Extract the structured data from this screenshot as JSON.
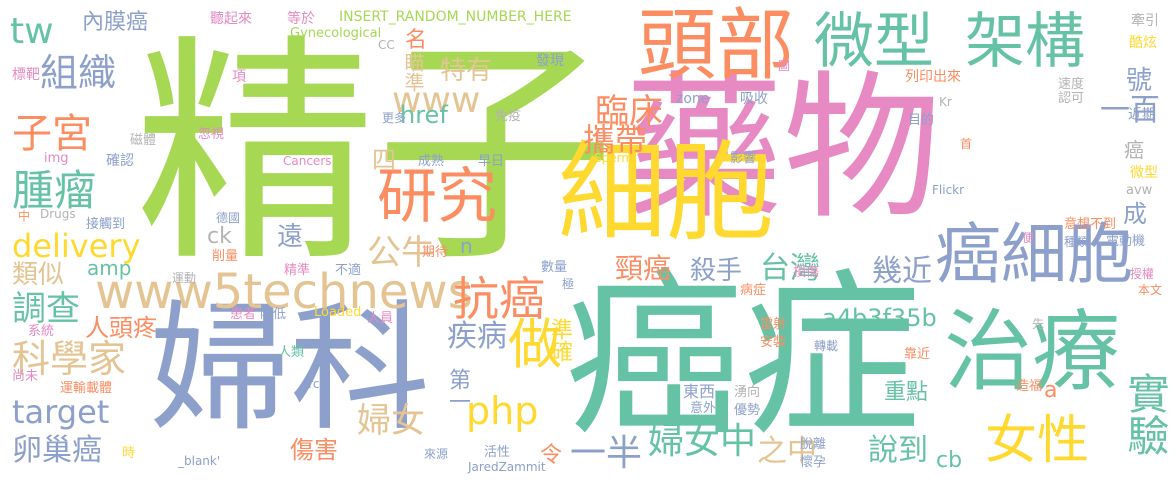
{
  "palette": {
    "green": "#a6d854",
    "teal": "#66c2a5",
    "pink": "#e78ac3",
    "orange": "#fc8d62",
    "blue": "#8da0cb",
    "yellow": "#ffd92f",
    "tan": "#e5c494",
    "gray": "#b3b3b3"
  },
  "words": [
    {
      "text": "精子",
      "color": "#a6d854"
    },
    {
      "text": "藥物",
      "color": "#e78ac3"
    },
    {
      "text": "癌症",
      "color": "#66c2a5"
    },
    {
      "text": "婦科",
      "color": "#8da0cb"
    },
    {
      "text": "細胞",
      "color": "#ffd92f"
    },
    {
      "text": "頭部",
      "color": "#fc8d62"
    },
    {
      "text": "微型",
      "color": "#66c2a5"
    },
    {
      "text": "架構",
      "color": "#66c2a5"
    },
    {
      "text": "治療",
      "color": "#66c2a5"
    },
    {
      "text": "癌細胞",
      "color": "#8da0cb"
    },
    {
      "text": "研究",
      "color": "#fc8d62"
    },
    {
      "text": "www5technews",
      "color": "#e5c494"
    },
    {
      "text": "女性",
      "color": "#ffd92f"
    },
    {
      "text": "實驗",
      "color": "#66c2a5"
    },
    {
      "text": "做",
      "color": "#ffd92f"
    },
    {
      "text": "抗癌",
      "color": "#fc8d62"
    },
    {
      "text": "公牛",
      "color": "#e5c494"
    },
    {
      "text": "delivery",
      "color": "#ffd92f"
    },
    {
      "text": "www",
      "color": "#e5c494"
    },
    {
      "text": "組織",
      "color": "#8da0cb"
    },
    {
      "text": "子宮",
      "color": "#fc8d62"
    },
    {
      "text": "腫瘤",
      "color": "#66c2a5"
    },
    {
      "text": "tw",
      "color": "#66c2a5"
    },
    {
      "text": "內膜癌",
      "color": "#8da0cb"
    },
    {
      "text": "臨床",
      "color": "#fc8d62"
    },
    {
      "text": "攜帶",
      "color": "#fc8d62"
    },
    {
      "text": "特有",
      "color": "#e5c494"
    },
    {
      "text": "瞄準",
      "color": "#e5c494"
    },
    {
      "text": "一百",
      "color": "#8da0cb"
    },
    {
      "text": "號",
      "color": "#8da0cb"
    },
    {
      "text": "科學家",
      "color": "#e5c494"
    },
    {
      "text": "target",
      "color": "#8da0cb"
    },
    {
      "text": "調查",
      "color": "#66c2a5"
    },
    {
      "text": "類似",
      "color": "#e5c494"
    },
    {
      "text": "卵巢癌",
      "color": "#8da0cb"
    },
    {
      "text": "人頭疼",
      "color": "#fc8d62"
    },
    {
      "text": "php",
      "color": "#ffd92f"
    },
    {
      "text": "婦女",
      "color": "#e5c494"
    },
    {
      "text": "婦女中",
      "color": "#66c2a5"
    },
    {
      "text": "一半",
      "color": "#8da0cb"
    },
    {
      "text": "令",
      "color": "#fc8d62"
    },
    {
      "text": "之中",
      "color": "#e5c494"
    },
    {
      "text": "說到",
      "color": "#66c2a5"
    },
    {
      "text": "重點",
      "color": "#66c2a5"
    },
    {
      "text": "台灣",
      "color": "#66c2a5"
    },
    {
      "text": "殺手",
      "color": "#8da0cb"
    },
    {
      "text": "幾近",
      "color": "#8da0cb"
    },
    {
      "text": "頸癌",
      "color": "#fc8d62"
    },
    {
      "text": "疾病",
      "color": "#8da0cb"
    },
    {
      "text": "準確",
      "color": "#ffd92f"
    },
    {
      "text": "第一",
      "color": "#8da0cb"
    },
    {
      "text": "遠",
      "color": "#8da0cb"
    },
    {
      "text": "四",
      "color": "#e5c494"
    },
    {
      "text": "a4b3f35b",
      "color": "#66c2a5"
    },
    {
      "text": "amp",
      "color": "#66c2a5"
    },
    {
      "text": "ck",
      "color": "#b3b3b3"
    },
    {
      "text": "n",
      "color": "#8da0cb"
    },
    {
      "text": "href",
      "color": "#66c2a5"
    },
    {
      "text": "名",
      "color": "#fc8d62"
    },
    {
      "text": "傷害",
      "color": "#fc8d62"
    },
    {
      "text": "cb",
      "color": "#66c2a5"
    },
    {
      "text": "a",
      "color": "#fc8d62"
    },
    {
      "text": "東西",
      "color": "#8da0cb"
    },
    {
      "text": "成",
      "color": "#8da0cb"
    },
    {
      "text": "癌",
      "color": "#b3b3b3"
    },
    {
      "text": "INSERT_RANDOM_NUMBER_HERE",
      "color": "#a6d854"
    },
    {
      "text": "聽起來",
      "color": "#e78ac3"
    },
    {
      "text": "等於",
      "color": "#e78ac3"
    },
    {
      "text": "Gynecological",
      "color": "#a6d854"
    },
    {
      "text": "牽引",
      "color": "#b3b3b3"
    },
    {
      "text": "酷炫",
      "color": "#ffd92f"
    },
    {
      "text": "標靶",
      "color": "#e78ac3"
    },
    {
      "text": "項",
      "color": "#e78ac3"
    },
    {
      "text": "CC",
      "color": "#b3b3b3"
    },
    {
      "text": "發現",
      "color": "#8da0cb"
    },
    {
      "text": "列印出來",
      "color": "#fc8d62"
    },
    {
      "text": "圖",
      "color": "#e78ac3"
    },
    {
      "text": "zone",
      "color": "#8da0cb"
    },
    {
      "text": "吸收",
      "color": "#8da0cb"
    },
    {
      "text": "速度",
      "color": "#b3b3b3"
    },
    {
      "text": "認可",
      "color": "#b3b3b3"
    },
    {
      "text": "Kr",
      "color": "#b3b3b3"
    },
    {
      "text": "近期",
      "color": "#8da0cb"
    },
    {
      "text": "免疫",
      "color": "#b3b3b3"
    },
    {
      "text": "目的",
      "color": "#8da0cb"
    },
    {
      "text": "首",
      "color": "#fc8d62"
    },
    {
      "text": "磁體",
      "color": "#b3b3b3"
    },
    {
      "text": "忽視",
      "color": "#e78ac3"
    },
    {
      "text": "更多",
      "color": "#8da0cb"
    },
    {
      "text": "img",
      "color": "#e78ac3"
    },
    {
      "text": "確認",
      "color": "#8da0cb"
    },
    {
      "text": "Cancers",
      "color": "#e78ac3"
    },
    {
      "text": "成熟",
      "color": "#8da0cb"
    },
    {
      "text": "早日",
      "color": "#8da0cb"
    },
    {
      "text": "Sperm",
      "color": "#ffd92f"
    },
    {
      "text": "影響",
      "color": "#8da0cb"
    },
    {
      "text": "微型",
      "color": "#ffd92f"
    },
    {
      "text": "avw",
      "color": "#b3b3b3"
    },
    {
      "text": "Drugs",
      "color": "#b3b3b3"
    },
    {
      "text": "中",
      "color": "#fc8d62"
    },
    {
      "text": "Flickr",
      "color": "#8da0cb"
    },
    {
      "text": "接觸到",
      "color": "#8da0cb"
    },
    {
      "text": "德國",
      "color": "#8da0cb"
    },
    {
      "text": "削量",
      "color": "#fc8d62"
    },
    {
      "text": "期待",
      "color": "#fc8d62"
    },
    {
      "text": "意想不到",
      "color": "#fc8d62"
    },
    {
      "text": "種類",
      "color": "#8da0cb"
    },
    {
      "text": "電動機",
      "color": "#8da0cb"
    },
    {
      "text": "便",
      "color": "#e78ac3"
    },
    {
      "text": "運動",
      "color": "#b3b3b3"
    },
    {
      "text": "精準",
      "color": "#e78ac3"
    },
    {
      "text": "不適",
      "color": "#8da0cb"
    },
    {
      "text": "數量",
      "color": "#8da0cb"
    },
    {
      "text": "極",
      "color": "#8da0cb"
    },
    {
      "text": "損傷",
      "color": "#e78ac3"
    },
    {
      "text": "授權",
      "color": "#e78ac3"
    },
    {
      "text": "病症",
      "color": "#fc8d62"
    },
    {
      "text": "本文",
      "color": "#fc8d62"
    },
    {
      "text": "系統",
      "color": "#e78ac3"
    },
    {
      "text": "患者",
      "color": "#e78ac3"
    },
    {
      "text": "降低",
      "color": "#8da0cb"
    },
    {
      "text": "Loaded",
      "color": "#ffd92f"
    },
    {
      "text": "人員",
      "color": "#e78ac3"
    },
    {
      "text": "雷射",
      "color": "#fc8d62"
    },
    {
      "text": "先",
      "color": "#b3b3b3"
    },
    {
      "text": "安裝",
      "color": "#fc8d62"
    },
    {
      "text": "人類",
      "color": "#66c2a5"
    },
    {
      "text": "轉載",
      "color": "#8da0cb"
    },
    {
      "text": "靠近",
      "color": "#fc8d62"
    },
    {
      "text": "尚未",
      "color": "#e78ac3"
    },
    {
      "text": "運輸載體",
      "color": "#fc8d62"
    },
    {
      "text": "src",
      "color": "#8da0cb"
    },
    {
      "text": "湧向",
      "color": "#b3b3b3"
    },
    {
      "text": "造福",
      "color": "#fc8d62"
    },
    {
      "text": "意外",
      "color": "#8da0cb"
    },
    {
      "text": "優勢",
      "color": "#8da0cb"
    },
    {
      "text": "時",
      "color": "#ffd92f"
    },
    {
      "text": "_blank'",
      "color": "#8da0cb"
    },
    {
      "text": "來源",
      "color": "#8da0cb"
    },
    {
      "text": "活性",
      "color": "#8da0cb"
    },
    {
      "text": "JaredZammit",
      "color": "#8da0cb"
    },
    {
      "text": "脫離",
      "color": "#8da0cb"
    },
    {
      "text": "懷孕",
      "color": "#8da0cb"
    }
  ]
}
